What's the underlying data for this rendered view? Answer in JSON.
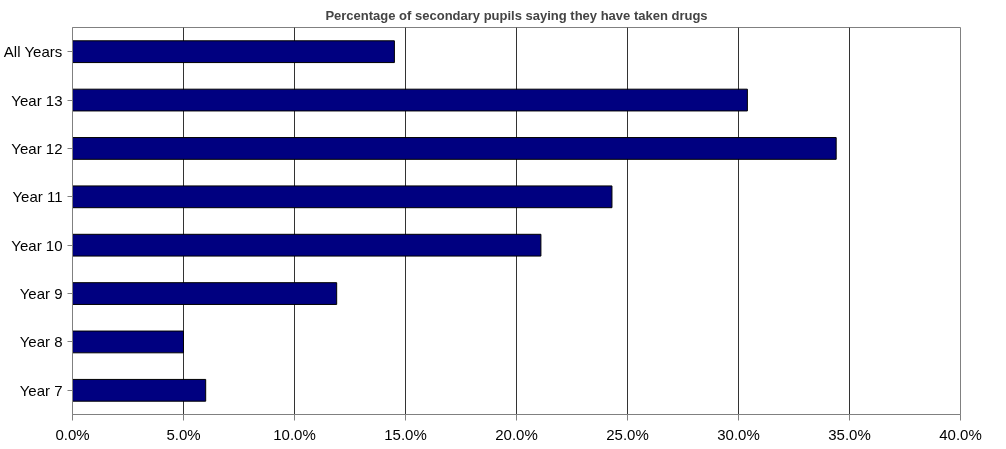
{
  "chart_data": {
    "type": "bar",
    "orientation": "horizontal",
    "title": "Percentage of secondary pupils saying they have taken drugs",
    "categories": [
      "All Years",
      "Year 13",
      "Year 12",
      "Year 11",
      "Year 10",
      "Year 9",
      "Year 8",
      "Year 7"
    ],
    "values": [
      14.5,
      30.4,
      34.4,
      24.3,
      21.1,
      11.9,
      5.0,
      6.0
    ],
    "color": "#000080",
    "xlim": [
      0,
      40
    ],
    "xticks": [
      {
        "value": 0,
        "label": "0.0%"
      },
      {
        "value": 5,
        "label": "5.0%"
      },
      {
        "value": 10,
        "label": "10.0%"
      },
      {
        "value": 15,
        "label": "15.0%"
      },
      {
        "value": 20,
        "label": "20.0%"
      },
      {
        "value": 25,
        "label": "25.0%"
      },
      {
        "value": 30,
        "label": "30.0%"
      },
      {
        "value": 35,
        "label": "35.0%"
      },
      {
        "value": 40,
        "label": "40.0%"
      }
    ],
    "grid": "x"
  }
}
